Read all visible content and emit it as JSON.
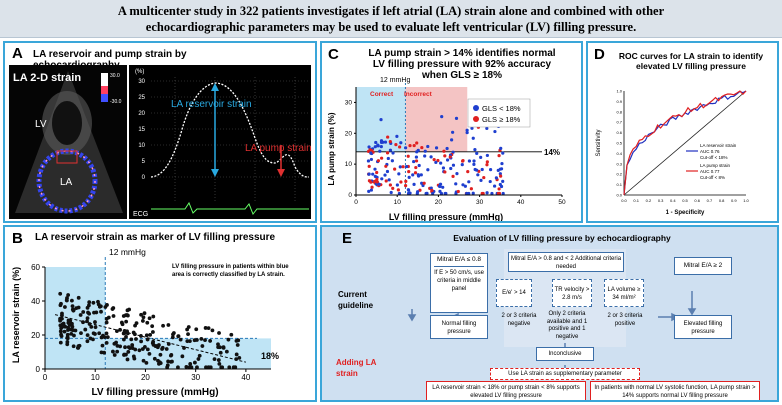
{
  "header": {
    "line1": "A multicenter study in 322 patients investigates if left atrial (LA) strain alone and combined with other",
    "line2": "echocardiographic parameters may be used to evaluate left ventricular (LV) filling pressure."
  },
  "panelA": {
    "letter": "A",
    "title": "LA reservoir and pump strain by echocardiography",
    "echo_label": "LA 2-D strain",
    "lv_label": "LV",
    "la_label": "LA",
    "scale_top": "30.0",
    "scale_bottom": "-30.0",
    "y_ticks": [
      "30",
      "25",
      "20",
      "15",
      "10",
      "5",
      "0"
    ],
    "y_unit": "(%)",
    "reservoir_label": "LA reservoir strain",
    "pump_label": "LA pump strain",
    "ecg_label": "ECG",
    "colors": {
      "reservoir": "#29a9e0",
      "pump": "#e03030"
    }
  },
  "panelB": {
    "letter": "B",
    "title": "LA reservoir strain as marker of LV filling pressure",
    "ylabel": "LA reservoir strain (%)",
    "xlabel": "LV filling pressure (mmHg)",
    "x_ticks": [
      "0",
      "10",
      "20",
      "30",
      "40"
    ],
    "y_ticks": [
      "0",
      "20",
      "40",
      "60"
    ],
    "vline_label": "12 mmHg",
    "hline_label": "18%",
    "note": "LV filling pressure in patients within blue area is correctly classified by LA strain."
  },
  "panelC": {
    "letter": "C",
    "title": "LA pump strain > 14% identifies normal LV filling pressure with 92% accuracy when GLS ≥ 18%",
    "vline_label": "12 mmHg",
    "correct_label": "Correct",
    "incorrect_label": "Incorrect",
    "ylabel": "LA pump strain (%)",
    "xlabel": "LV filling pressure (mmHg)",
    "x_ticks": [
      "0",
      "10",
      "20",
      "30",
      "40",
      "50"
    ],
    "y_ticks": [
      "0",
      "10",
      "20",
      "30"
    ],
    "hline_label": "14%",
    "legend": [
      {
        "label": "GLS < 18%",
        "color": "#1f3fcf"
      },
      {
        "label": "GLS ≥ 18%",
        "color": "#e02020"
      }
    ]
  },
  "panelD": {
    "letter": "D",
    "title": "ROC curves for LA strain to identify elevated LV filling pressure",
    "ylabel": "Sensitivity",
    "xlabel": "1 - Specificity",
    "ticks": [
      "0.0",
      "0.1",
      "0.2",
      "0.3",
      "0.4",
      "0.5",
      "0.6",
      "0.7",
      "0.8",
      "0.9",
      "1.0"
    ],
    "legend": [
      {
        "name": "LA reservoir strain",
        "auc": "AUC 0.76",
        "cutoff": "Cut-off < 18%",
        "color": "#1f2fbf"
      },
      {
        "name": "LA pump strain",
        "auc": "AUC 0.77",
        "cutoff": "Cut-off < 8%",
        "color": "#e02020"
      }
    ]
  },
  "panelE": {
    "letter": "E",
    "title": "Evaluation of LV filling pressure by echocardiography",
    "current_guideline": "Current guideline",
    "adding_la_strain": "Adding LA strain",
    "box_mitral_low": "Mitral E/A ≤ 0.8",
    "box_mitral_low_sub": "If E > 50 cm/s, use criteria in middle panel",
    "box_mitral_mid": "Mitral E/A > 0.8 and < 2 Additional criteria needed",
    "box_mitral_high": "Mitral E/A ≥ 2",
    "crit_ee": "E/e' > 14",
    "crit_tr": "TR velocity > 2.8 m/s",
    "crit_lav": "LA volume ≥ 34 ml/m²",
    "neg_text": "2 or 3 criteria negative",
    "pos_text": "2 or 3 criteria positive",
    "only2_text": "Only 2 criteria available and 1 positive and 1 negative",
    "normal": "Normal filling pressure",
    "elevated": "Elevated filling pressure",
    "inconclusive": "Inconclusive",
    "supplementary": "Use LA strain as supplementary parameter",
    "strain_elevated": "LA reservoir strain < 18% or pump strain < 8% supports elevated LV filling pressure",
    "strain_normal": "In patients with normal LV systolic function, LA pump strain > 14% supports normal LV filling pressure"
  }
}
